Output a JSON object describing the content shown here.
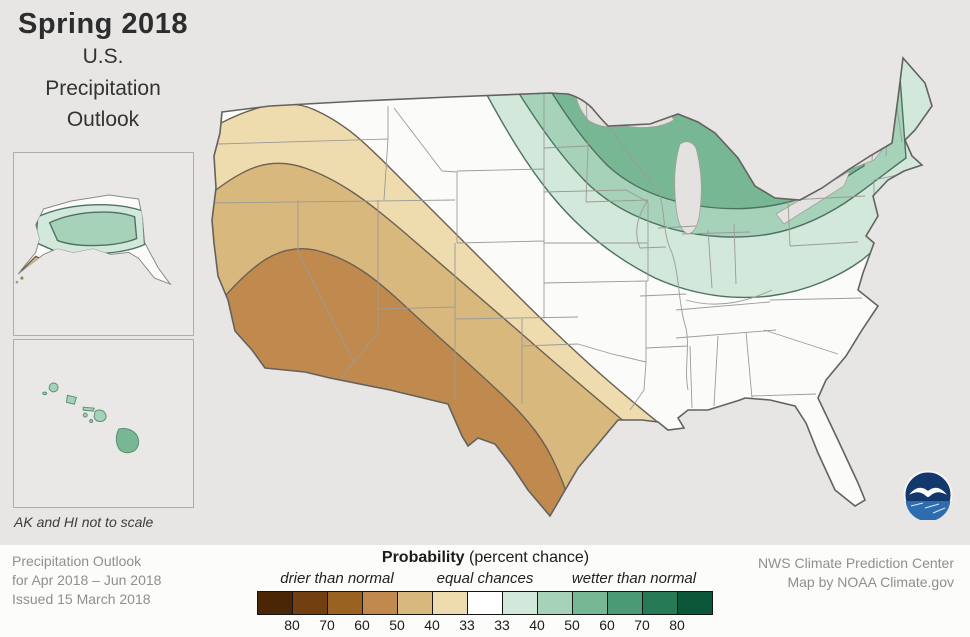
{
  "header": {
    "title": "Spring 2018",
    "subtitle_lines": [
      "U.S.",
      "Precipitation",
      "Outlook"
    ]
  },
  "insets": {
    "note": "AK and HI not to scale"
  },
  "map": {
    "colors": {
      "background": "#e7e6e4",
      "land": "#fbfbf9",
      "water": "#e3e2e0",
      "dry_33": "#eedbae",
      "dry_40": "#d9b87e",
      "dry_50": "#c08a4e",
      "wet_33": "#d2e8da",
      "wet_40": "#a5d2b8",
      "wet_50": "#77b794"
    },
    "regions": [
      {
        "outlook": "drier than normal",
        "probabilities": [
          "33",
          "40",
          "50"
        ],
        "area": "Southwest, California, Great Basin, Four Corners, Texas, southern Plains"
      },
      {
        "outlook": "wetter than normal",
        "probabilities": [
          "33",
          "40",
          "50"
        ],
        "area": "Northern Plains, Upper Midwest, Great Lakes, Ohio Valley, Northeast, mid-Atlantic"
      },
      {
        "outlook": "wetter than normal",
        "probabilities": [
          "33",
          "40"
        ],
        "area": "Alaska"
      },
      {
        "outlook": "wetter than normal",
        "probabilities": [
          "40"
        ],
        "area": "Hawaii"
      },
      {
        "outlook": "equal chances",
        "probabilities": [],
        "area": "Pacific Northwest, central Plains, Southeast, Florida"
      }
    ]
  },
  "legend": {
    "title_bold": "Probability",
    "title_rest": " (percent chance)",
    "label_drier": "drier than normal",
    "label_equal": "equal chances",
    "label_wetter": "wetter than normal",
    "ticks": [
      "80",
      "70",
      "60",
      "50",
      "40",
      "33",
      "33",
      "40",
      "50",
      "60",
      "70",
      "80"
    ],
    "cells": [
      "#4a2607",
      "#713f10",
      "#9a6220",
      "#c08a4e",
      "#d9b87e",
      "#eedbae",
      "#ffffff",
      "#d2e8da",
      "#a5d2b8",
      "#77b794",
      "#4b9a76",
      "#277a56",
      "#0c573a"
    ]
  },
  "footer": {
    "left_lines": [
      "Precipitation Outlook",
      "for Apr 2018 – Jun 2018",
      "Issued 15 March 2018"
    ],
    "right_lines": [
      "NWS Climate Prediction Center",
      "Map by NOAA Climate.gov"
    ]
  }
}
